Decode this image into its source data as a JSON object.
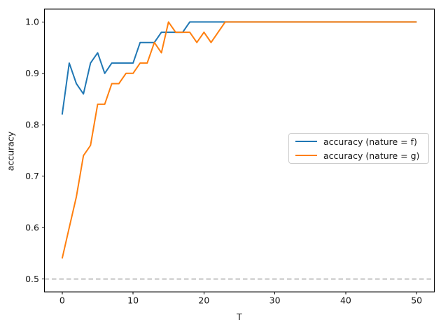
{
  "figure": {
    "background": "#ffffff",
    "text_color": "#151515",
    "spine_color": "#000000"
  },
  "chart_data": {
    "type": "line",
    "title": "",
    "xlabel": "T",
    "ylabel": "accuracy",
    "xlim": [
      -2.5,
      52.5
    ],
    "ylim": [
      0.475,
      1.025
    ],
    "grid": false,
    "legend_position": "center right",
    "x_ticks": [
      0,
      10,
      20,
      30,
      40,
      50
    ],
    "y_ticks": [
      0.5,
      0.6,
      0.7,
      0.8,
      0.9,
      1.0
    ],
    "x": [
      0,
      1,
      2,
      3,
      4,
      5,
      6,
      7,
      8,
      9,
      10,
      11,
      12,
      13,
      14,
      15,
      16,
      17,
      18,
      19,
      20,
      21,
      22,
      23,
      24,
      25,
      26,
      27,
      28,
      29,
      30,
      31,
      32,
      33,
      34,
      35,
      36,
      37,
      38,
      39,
      40,
      41,
      42,
      43,
      44,
      45,
      46,
      47,
      48,
      49,
      50
    ],
    "series": [
      {
        "name": "accuracy (nature = f)",
        "color": "#1f77b4",
        "line_width": 2,
        "values": [
          0.82,
          0.92,
          0.88,
          0.86,
          0.92,
          0.94,
          0.9,
          0.92,
          0.92,
          0.92,
          0.92,
          0.96,
          0.96,
          0.96,
          0.98,
          0.98,
          0.98,
          0.98,
          1.0,
          1.0,
          1.0,
          1.0,
          1.0,
          1.0,
          1.0,
          1.0,
          1.0,
          1.0,
          1.0,
          1.0,
          1.0,
          1.0,
          1.0,
          1.0,
          1.0,
          1.0,
          1.0,
          1.0,
          1.0,
          1.0,
          1.0,
          1.0,
          1.0,
          1.0,
          1.0,
          1.0,
          1.0,
          1.0,
          1.0,
          1.0,
          1.0
        ]
      },
      {
        "name": "accuracy (nature = g)",
        "color": "#ff7f0e",
        "line_width": 2,
        "values": [
          0.54,
          0.6,
          0.66,
          0.74,
          0.76,
          0.84,
          0.84,
          0.88,
          0.88,
          0.9,
          0.9,
          0.92,
          0.92,
          0.96,
          0.94,
          1.0,
          0.98,
          0.98,
          0.98,
          0.96,
          0.98,
          0.96,
          0.98,
          1.0,
          1.0,
          1.0,
          1.0,
          1.0,
          1.0,
          1.0,
          1.0,
          1.0,
          1.0,
          1.0,
          1.0,
          1.0,
          1.0,
          1.0,
          1.0,
          1.0,
          1.0,
          1.0,
          1.0,
          1.0,
          1.0,
          1.0,
          1.0,
          1.0,
          1.0,
          1.0,
          1.0
        ]
      }
    ],
    "reference_line": {
      "y": 0.5,
      "color": "#b8b8b8",
      "style": "dashed",
      "dash": "6.5 4",
      "line_width": 1.7
    }
  }
}
